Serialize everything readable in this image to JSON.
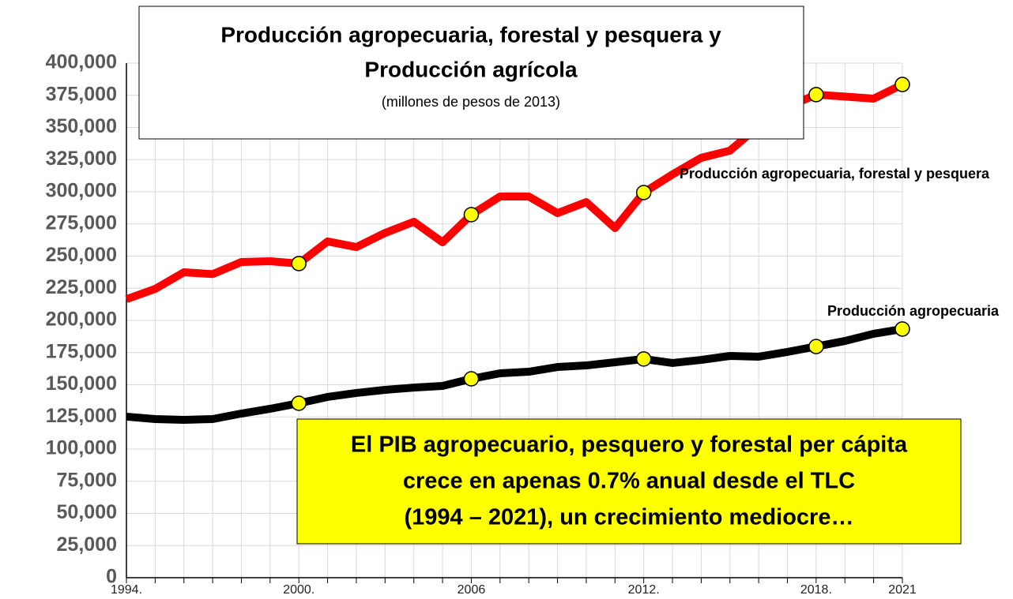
{
  "chart_data": {
    "type": "line",
    "title": [
      "Producción agropecuaria, forestal y pesquera y",
      "Producción agrícola"
    ],
    "subtitle": "(millones de pesos de 2013)",
    "annotation": [
      "El PIB agropecuario, pesquero y forestal per cápita",
      "crece en apenas 0.7% anual desde el TLC",
      "(1994 – 2021), un crecimiento mediocre…"
    ],
    "categories": [
      "1994.",
      null,
      null,
      null,
      null,
      null,
      "2000.",
      null,
      null,
      null,
      null,
      null,
      "2006",
      null,
      null,
      null,
      null,
      null,
      "2012.",
      null,
      null,
      null,
      null,
      null,
      "2018.",
      null,
      null,
      "2021"
    ],
    "markers": [
      6,
      12,
      18,
      24,
      27
    ],
    "series": [
      {
        "name": "Producción agropecuaria, forestal y pesquera",
        "color": "#ff0000",
        "values": [
          216500,
          224500,
          237400,
          236000,
          245400,
          246000,
          244200,
          261400,
          257000,
          268000,
          276700,
          260700,
          282200,
          296300,
          296300,
          283400,
          292000,
          271800,
          299400,
          313500,
          326400,
          332000,
          351000,
          366000,
          375500,
          374000,
          372400,
          383400
        ]
      },
      {
        "name": "Producción agropecuaria",
        "color": "#000000",
        "values": [
          125200,
          123300,
          122700,
          123300,
          127600,
          131300,
          135600,
          140500,
          143600,
          146000,
          147800,
          149100,
          154600,
          158900,
          160100,
          163800,
          165000,
          167500,
          170000,
          166900,
          169300,
          172400,
          171800,
          175500,
          179700,
          184000,
          189600,
          193300
        ]
      }
    ],
    "ylim": [
      0,
      400000
    ],
    "yticks": [
      0,
      {
        "value": 25000,
        "label": "25,000"
      },
      {
        "value": 50000,
        "label": "50,000"
      },
      {
        "value": 75000,
        "label": "75,000"
      },
      {
        "value": 100000,
        "label": "100,000"
      },
      {
        "value": 125000,
        "label": "125,000"
      },
      {
        "value": 150000,
        "label": "150,000"
      },
      {
        "value": 175000,
        "label": "175,000"
      },
      {
        "value": 200000,
        "label": "200,000"
      },
      {
        "value": 225000,
        "label": "225,000"
      },
      {
        "value": 250000,
        "label": "250,000"
      },
      {
        "value": 275000,
        "label": "275,000"
      },
      {
        "value": 300000,
        "label": "300,000"
      },
      {
        "value": 325000,
        "label": "325,000"
      },
      {
        "value": 350000,
        "label": "350,000"
      },
      {
        "value": 375000,
        "label": "375,000"
      },
      {
        "value": 400000,
        "label": "400,000"
      }
    ],
    "grid": true,
    "marker_color": "#ffff00"
  }
}
